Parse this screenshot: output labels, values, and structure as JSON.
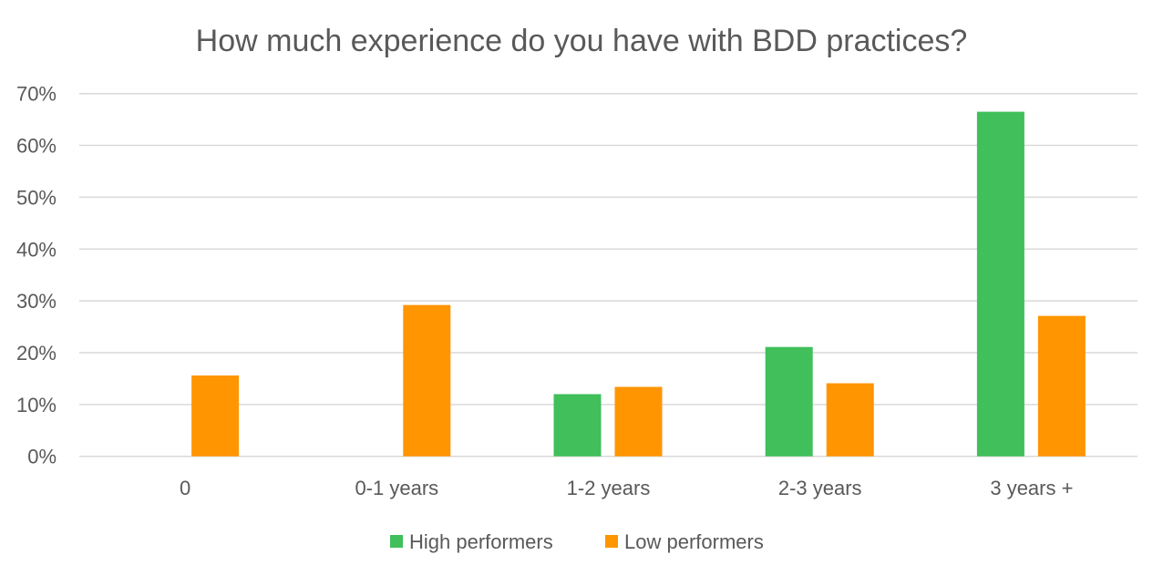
{
  "chart_data": {
    "type": "bar",
    "title": "How much experience do you have with BDD practices?",
    "xlabel": "",
    "ylabel": "",
    "categories": [
      "0",
      "0-1 years",
      "1-2 years",
      "2-3 years",
      "3 years +"
    ],
    "series": [
      {
        "name": "High performers",
        "color": "#40BF5B",
        "values": [
          0,
          0,
          12.0,
          21.1,
          66.5
        ]
      },
      {
        "name": "Low performers",
        "color": "#FF9501",
        "values": [
          15.6,
          29.2,
          13.4,
          14.1,
          27.1
        ]
      }
    ],
    "ylim": [
      0,
      70
    ],
    "yticks": [
      0,
      10,
      20,
      30,
      40,
      50,
      60,
      70
    ],
    "ytick_labels": [
      "0%",
      "10%",
      "20%",
      "30%",
      "40%",
      "50%",
      "60%",
      "70%"
    ],
    "grid": true,
    "legend_position": "bottom",
    "gridline_color": "#D9D9D9",
    "text_color": "#595959"
  }
}
